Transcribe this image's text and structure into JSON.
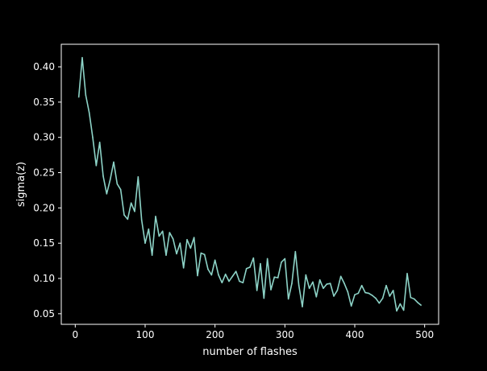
{
  "chart_data": {
    "type": "line",
    "title": "",
    "xlabel": "number of flashes",
    "ylabel": "sigma(z)",
    "xlim": [
      -20,
      520
    ],
    "ylim": [
      0.035,
      0.432
    ],
    "x_ticks": [
      0,
      100,
      200,
      300,
      400,
      500
    ],
    "y_ticks": [
      0.05,
      0.1,
      0.15,
      0.2,
      0.25,
      0.3,
      0.35,
      0.4
    ],
    "x_tick_labels": [
      "0",
      "100",
      "200",
      "300",
      "400",
      "500"
    ],
    "y_tick_labels": [
      "0.05",
      "0.10",
      "0.15",
      "0.20",
      "0.25",
      "0.30",
      "0.35",
      "0.40"
    ],
    "grid": false,
    "background_color": "#000000",
    "axes_color": "#ffffff",
    "series": [
      {
        "color": "#8dd3c7",
        "x": [
          5,
          10,
          15,
          20,
          25,
          30,
          35,
          40,
          45,
          50,
          55,
          60,
          65,
          70,
          75,
          80,
          85,
          90,
          95,
          100,
          105,
          110,
          115,
          120,
          125,
          130,
          135,
          140,
          145,
          150,
          155,
          160,
          165,
          170,
          175,
          180,
          185,
          190,
          195,
          200,
          205,
          210,
          215,
          220,
          225,
          230,
          235,
          240,
          245,
          250,
          255,
          260,
          265,
          270,
          275,
          280,
          285,
          290,
          295,
          300,
          305,
          310,
          315,
          320,
          325,
          330,
          335,
          340,
          345,
          350,
          355,
          360,
          365,
          370,
          375,
          380,
          385,
          390,
          395,
          400,
          405,
          410,
          415,
          420,
          425,
          430,
          435,
          440,
          445,
          450,
          455,
          460,
          465,
          470,
          475,
          480,
          485,
          490,
          495
        ],
        "y": [
          0.357,
          0.413,
          0.36,
          0.335,
          0.3,
          0.26,
          0.293,
          0.245,
          0.22,
          0.24,
          0.265,
          0.234,
          0.226,
          0.19,
          0.184,
          0.207,
          0.195,
          0.244,
          0.183,
          0.15,
          0.17,
          0.133,
          0.188,
          0.16,
          0.167,
          0.133,
          0.165,
          0.156,
          0.135,
          0.15,
          0.115,
          0.155,
          0.143,
          0.158,
          0.104,
          0.136,
          0.134,
          0.113,
          0.105,
          0.126,
          0.105,
          0.094,
          0.106,
          0.096,
          0.103,
          0.11,
          0.096,
          0.094,
          0.114,
          0.116,
          0.129,
          0.083,
          0.121,
          0.072,
          0.128,
          0.084,
          0.102,
          0.101,
          0.123,
          0.128,
          0.071,
          0.093,
          0.138,
          0.09,
          0.06,
          0.105,
          0.086,
          0.095,
          0.074,
          0.098,
          0.086,
          0.092,
          0.093,
          0.075,
          0.083,
          0.103,
          0.093,
          0.081,
          0.061,
          0.077,
          0.079,
          0.09,
          0.08,
          0.079,
          0.076,
          0.072,
          0.065,
          0.072,
          0.09,
          0.075,
          0.083,
          0.054,
          0.064,
          0.055,
          0.107,
          0.073,
          0.071,
          0.066,
          0.062
        ]
      }
    ]
  }
}
